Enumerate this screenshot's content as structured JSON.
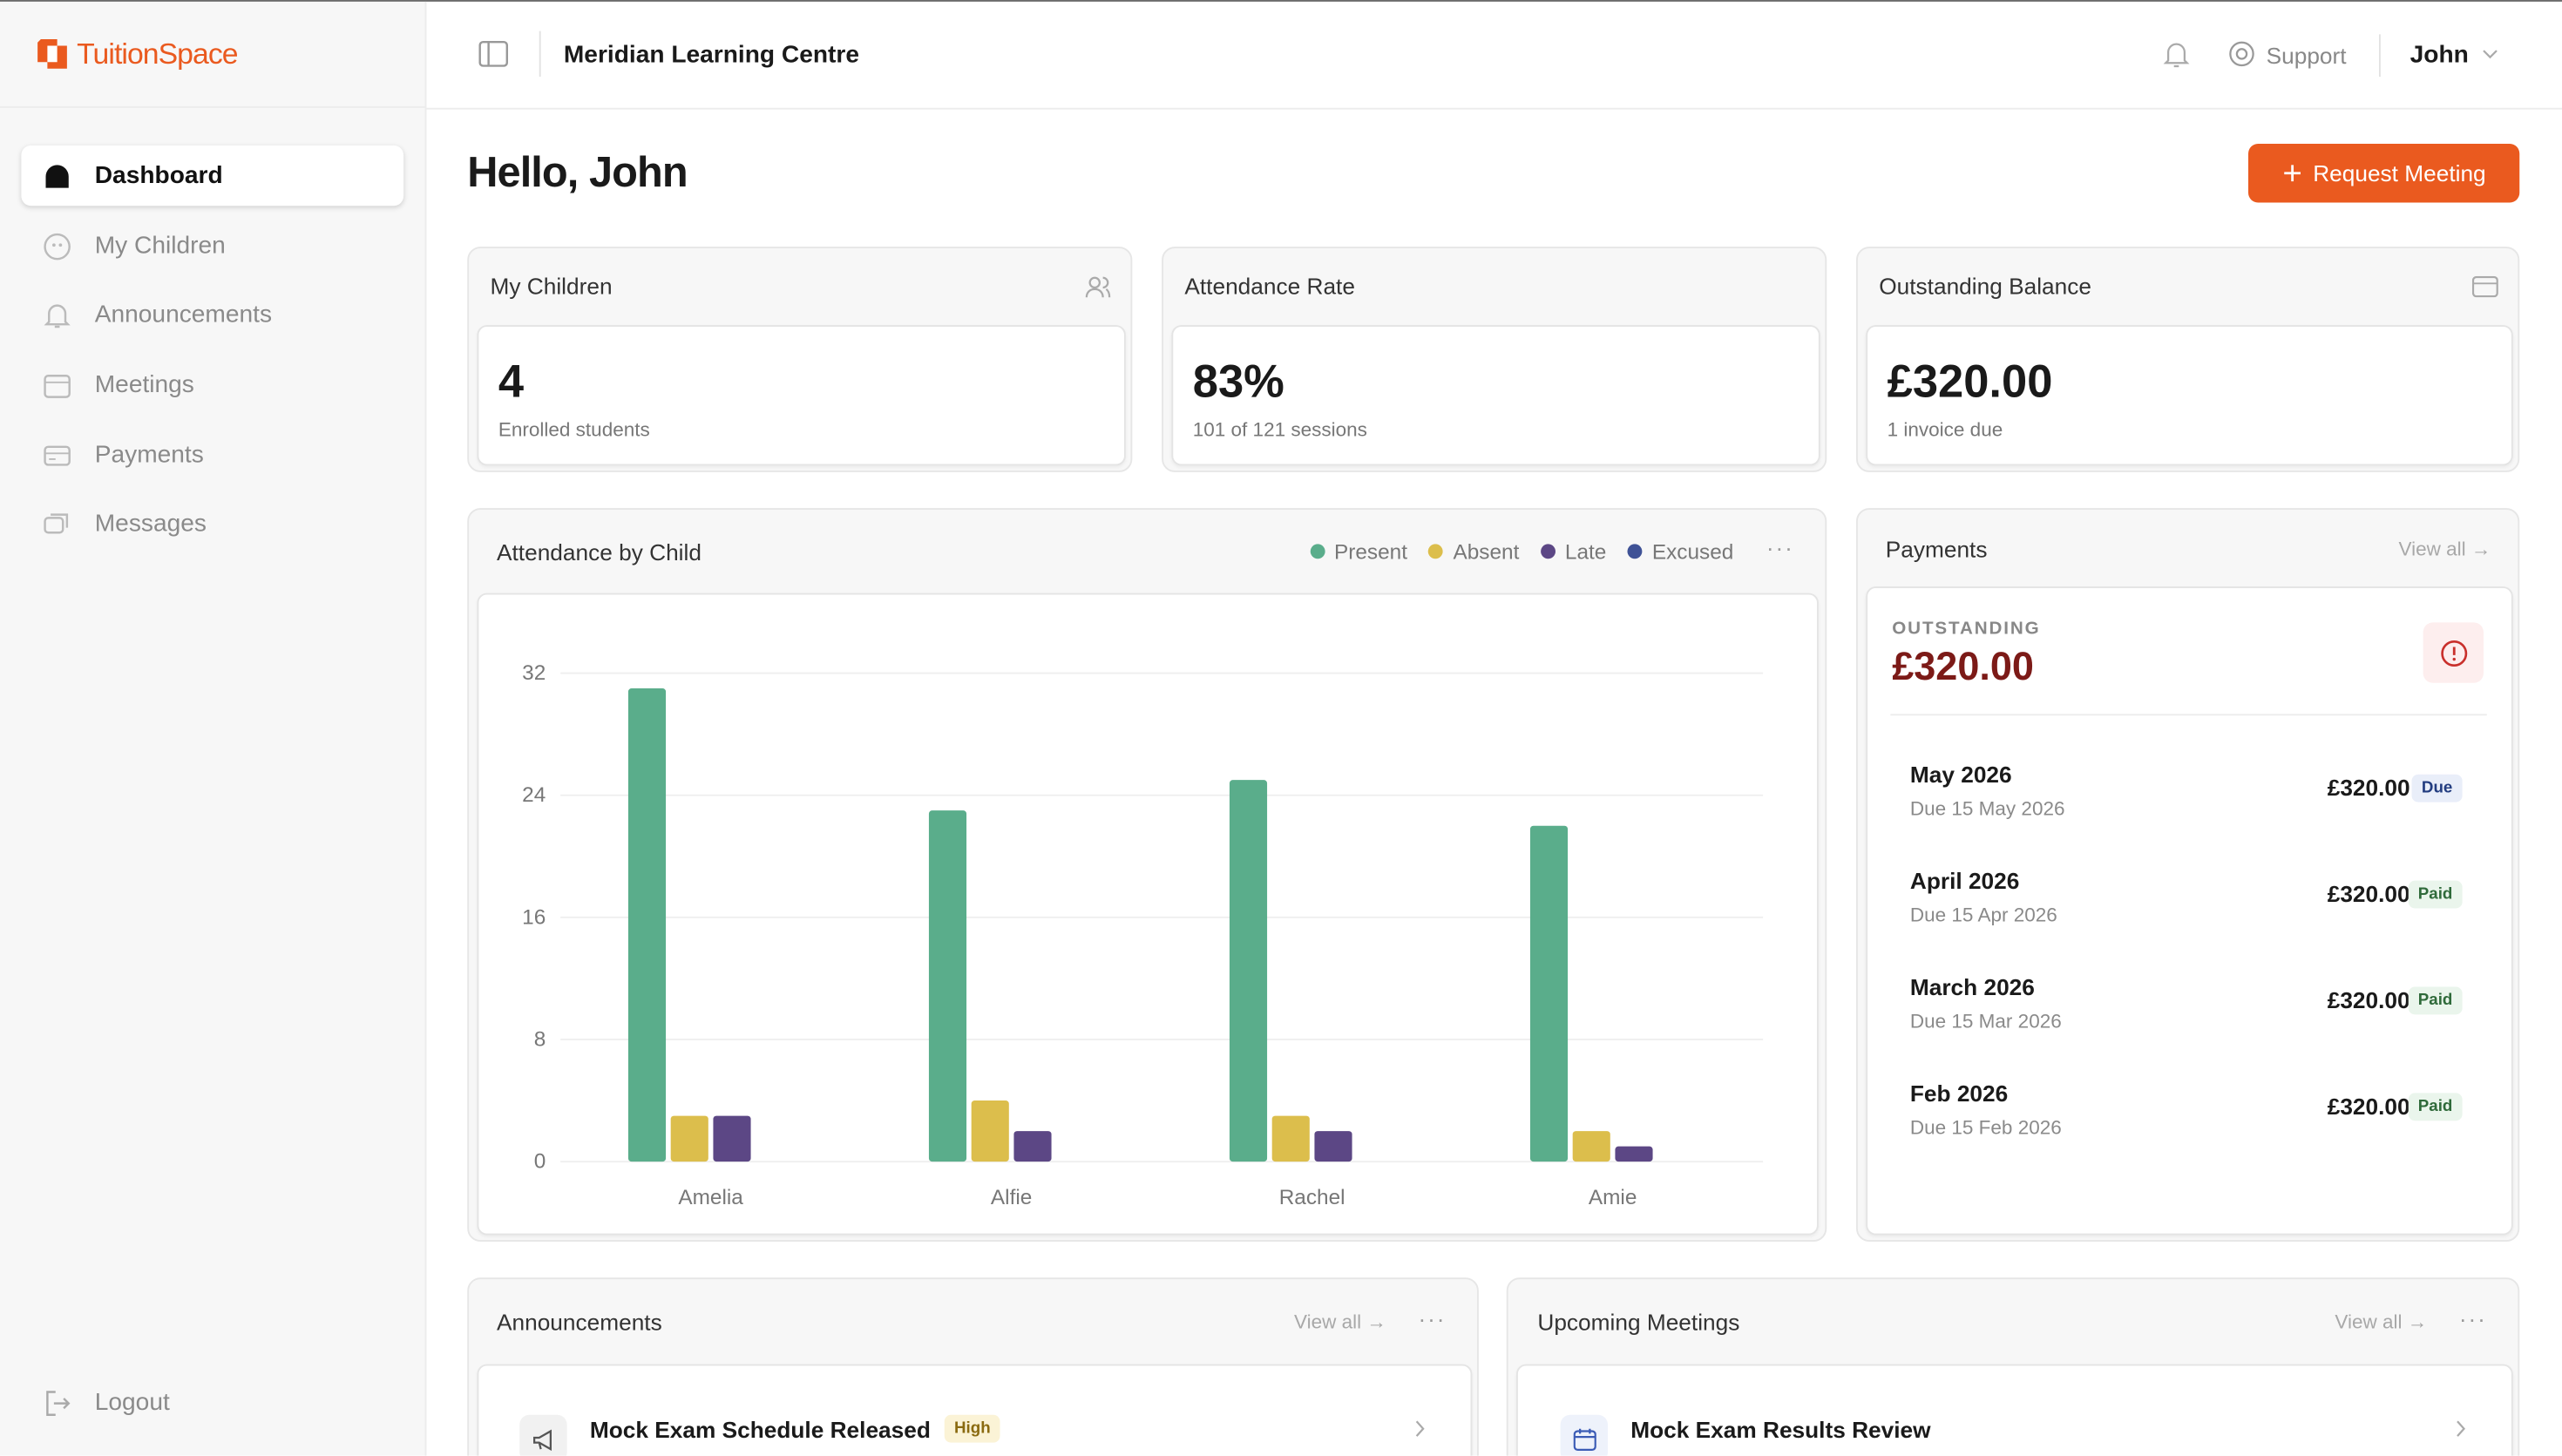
{
  "sidebar": {
    "brand": "TuitionSpace",
    "nav": [
      "Dashboard",
      "My Children",
      "Announcements",
      "Meetings",
      "Payments",
      "Messages"
    ],
    "logout": "Logout"
  },
  "header": {
    "organization": "Meridian Learning Centre",
    "support": "Support",
    "user": "John"
  },
  "page": {
    "greeting": "Hello, John",
    "action": "Request Meeting"
  },
  "stats": [
    {
      "title": "My Children",
      "value": "4",
      "note": "Enrolled students"
    },
    {
      "title": "Attendance Rate",
      "value": "83%",
      "note": "101 of 121 sessions"
    },
    {
      "title": "Outstanding Balance",
      "value": "£320.00",
      "note": "1 invoice due"
    }
  ],
  "chart_data": {
    "type": "bar",
    "title": "Attendance by Child",
    "categories": [
      "Amelia",
      "Alfie",
      "Rachel",
      "Amie"
    ],
    "series": [
      {
        "name": "Present",
        "color": "#5aad8b",
        "values": [
          31,
          23,
          25,
          22
        ]
      },
      {
        "name": "Absent",
        "color": "#dcbe4c",
        "values": [
          3,
          4,
          3,
          2
        ]
      },
      {
        "name": "Late",
        "color": "#5c4785",
        "values": [
          3,
          2,
          2,
          1
        ]
      },
      {
        "name": "Excused",
        "color": "#3f5296",
        "values": [
          0,
          0,
          0,
          0
        ]
      }
    ],
    "ylim": [
      0,
      32
    ],
    "yticks": [
      0,
      8,
      16,
      24,
      32
    ],
    "grid": true
  },
  "payments": {
    "title": "Payments",
    "link": "View all →",
    "outstanding_label": "OUTSTANDING",
    "outstanding_amount": "£320.00",
    "items": [
      {
        "month": "May 2026",
        "due": "Due 15 May 2026",
        "amount": "£320.00",
        "status": "Due"
      },
      {
        "month": "April 2026",
        "due": "Due 15 Apr 2026",
        "amount": "£320.00",
        "status": "Paid"
      },
      {
        "month": "March 2026",
        "due": "Due 15 Mar 2026",
        "amount": "£320.00",
        "status": "Paid"
      },
      {
        "month": "Feb 2026",
        "due": "Due 15 Feb 2026",
        "amount": "£320.00",
        "status": "Paid"
      }
    ]
  },
  "announcements": {
    "title": "Announcements",
    "link": "View all →",
    "items": [
      {
        "title": "Mock Exam Schedule Released",
        "priority": "High"
      }
    ]
  },
  "meetings": {
    "title": "Upcoming Meetings",
    "link": "View all →",
    "items": [
      {
        "title": "Mock Exam Results Review"
      }
    ]
  }
}
